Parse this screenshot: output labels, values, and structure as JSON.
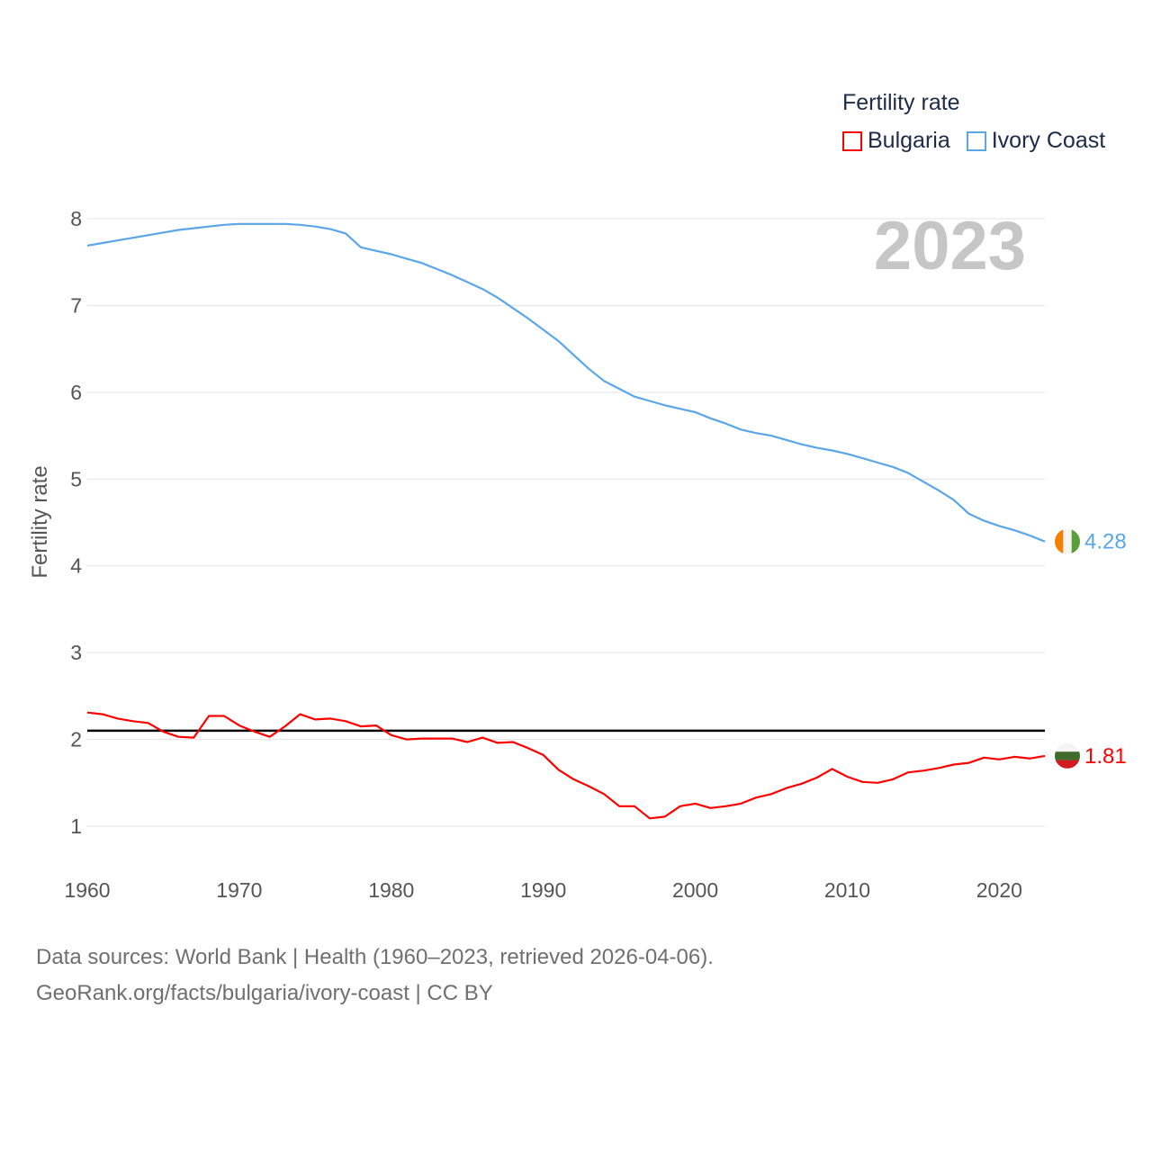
{
  "legend": {
    "title": "Fertility rate",
    "items": [
      {
        "label": "Bulgaria",
        "color": "#ff0000"
      },
      {
        "label": "Ivory Coast",
        "color": "#5aa6e6"
      }
    ]
  },
  "source": {
    "line1": "Data sources: World Bank | Health (1960–2023, retrieved 2026-04-06).",
    "line2": "GeoRank.org/facts/bulgaria/ivory-coast | CC BY"
  },
  "chart_data": {
    "type": "line",
    "title": "Fertility rate",
    "year_label": "2023",
    "xlabel": "",
    "ylabel": "Fertility rate",
    "xlim": [
      1960,
      2023
    ],
    "ylim": [
      0.3,
      8.3
    ],
    "x_ticks": [
      1960,
      1970,
      1980,
      1990,
      2000,
      2010,
      2020
    ],
    "y_ticks": [
      1,
      2,
      3,
      4,
      5,
      6,
      7,
      8
    ],
    "reference_line": {
      "value": 2.1,
      "color": "#000000"
    },
    "years": [
      1960,
      1961,
      1962,
      1963,
      1964,
      1965,
      1966,
      1967,
      1968,
      1969,
      1970,
      1971,
      1972,
      1973,
      1974,
      1975,
      1976,
      1977,
      1978,
      1979,
      1980,
      1981,
      1982,
      1983,
      1984,
      1985,
      1986,
      1987,
      1988,
      1989,
      1990,
      1991,
      1992,
      1993,
      1994,
      1995,
      1996,
      1997,
      1998,
      1999,
      2000,
      2001,
      2002,
      2003,
      2004,
      2005,
      2006,
      2007,
      2008,
      2009,
      2010,
      2011,
      2012,
      2013,
      2014,
      2015,
      2016,
      2017,
      2018,
      2019,
      2020,
      2021,
      2022,
      2023
    ],
    "series": [
      {
        "name": "Bulgaria",
        "color": "#ff0000",
        "end_label": "1.81",
        "values": [
          2.31,
          2.29,
          2.24,
          2.21,
          2.19,
          2.09,
          2.03,
          2.02,
          2.27,
          2.27,
          2.16,
          2.09,
          2.03,
          2.15,
          2.29,
          2.23,
          2.24,
          2.21,
          2.15,
          2.16,
          2.05,
          2.0,
          2.01,
          2.01,
          2.01,
          1.97,
          2.02,
          1.96,
          1.97,
          1.9,
          1.82,
          1.65,
          1.54,
          1.46,
          1.37,
          1.23,
          1.23,
          1.09,
          1.11,
          1.23,
          1.26,
          1.21,
          1.23,
          1.26,
          1.33,
          1.37,
          1.44,
          1.49,
          1.56,
          1.66,
          1.57,
          1.51,
          1.5,
          1.54,
          1.62,
          1.64,
          1.67,
          1.71,
          1.73,
          1.79,
          1.77,
          1.8,
          1.78,
          1.81
        ]
      },
      {
        "name": "Ivory Coast",
        "color": "#5aa6e6",
        "end_label": "4.28",
        "values": [
          7.69,
          7.72,
          7.75,
          7.78,
          7.81,
          7.84,
          7.87,
          7.89,
          7.91,
          7.93,
          7.94,
          7.94,
          7.94,
          7.94,
          7.93,
          7.91,
          7.88,
          7.83,
          7.67,
          7.63,
          7.59,
          7.54,
          7.49,
          7.42,
          7.35,
          7.27,
          7.19,
          7.09,
          6.97,
          6.85,
          6.72,
          6.59,
          6.43,
          6.27,
          6.13,
          6.04,
          5.95,
          5.9,
          5.85,
          5.81,
          5.77,
          5.7,
          5.64,
          5.57,
          5.53,
          5.5,
          5.45,
          5.4,
          5.36,
          5.33,
          5.29,
          5.24,
          5.19,
          5.14,
          5.07,
          4.97,
          4.87,
          4.76,
          4.6,
          4.52,
          4.46,
          4.41,
          4.35,
          4.28
        ]
      }
    ]
  }
}
